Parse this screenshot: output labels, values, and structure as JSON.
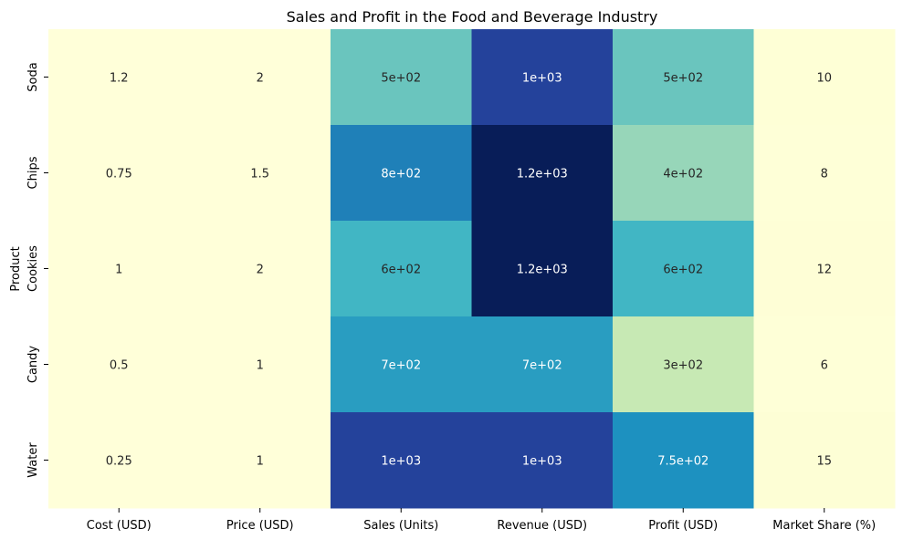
{
  "chart_data": {
    "type": "heatmap",
    "title": "Sales and Profit in the Food and Beverage Industry",
    "xlabel": "",
    "ylabel": "Product",
    "columns": [
      "Cost (USD)",
      "Price (USD)",
      "Sales (Units)",
      "Revenue (USD)",
      "Profit (USD)",
      "Market Share (%)"
    ],
    "rows": [
      "Soda",
      "Chips",
      "Cookies",
      "Candy",
      "Water"
    ],
    "values": [
      [
        1.2,
        2,
        500,
        1000,
        500,
        10
      ],
      [
        0.75,
        1.5,
        800,
        1200,
        400,
        8
      ],
      [
        1,
        2,
        600,
        1200,
        600,
        12
      ],
      [
        0.5,
        1,
        700,
        700,
        300,
        6
      ],
      [
        0.25,
        1,
        1000,
        1000,
        750,
        15
      ]
    ],
    "annotations": [
      [
        "1.2",
        "2",
        "5e+02",
        "1e+03",
        "5e+02",
        "10"
      ],
      [
        "0.75",
        "1.5",
        "8e+02",
        "1.2e+03",
        "4e+02",
        "8"
      ],
      [
        "1",
        "2",
        "6e+02",
        "1.2e+03",
        "6e+02",
        "12"
      ],
      [
        "0.5",
        "1",
        "7e+02",
        "7e+02",
        "3e+02",
        "6"
      ],
      [
        "0.25",
        "1",
        "1e+03",
        "1e+03",
        "7.5e+02",
        "15"
      ]
    ],
    "colormap": "YlGnBu",
    "value_range": [
      0.25,
      1200
    ],
    "colorbar": false,
    "grid": false
  }
}
